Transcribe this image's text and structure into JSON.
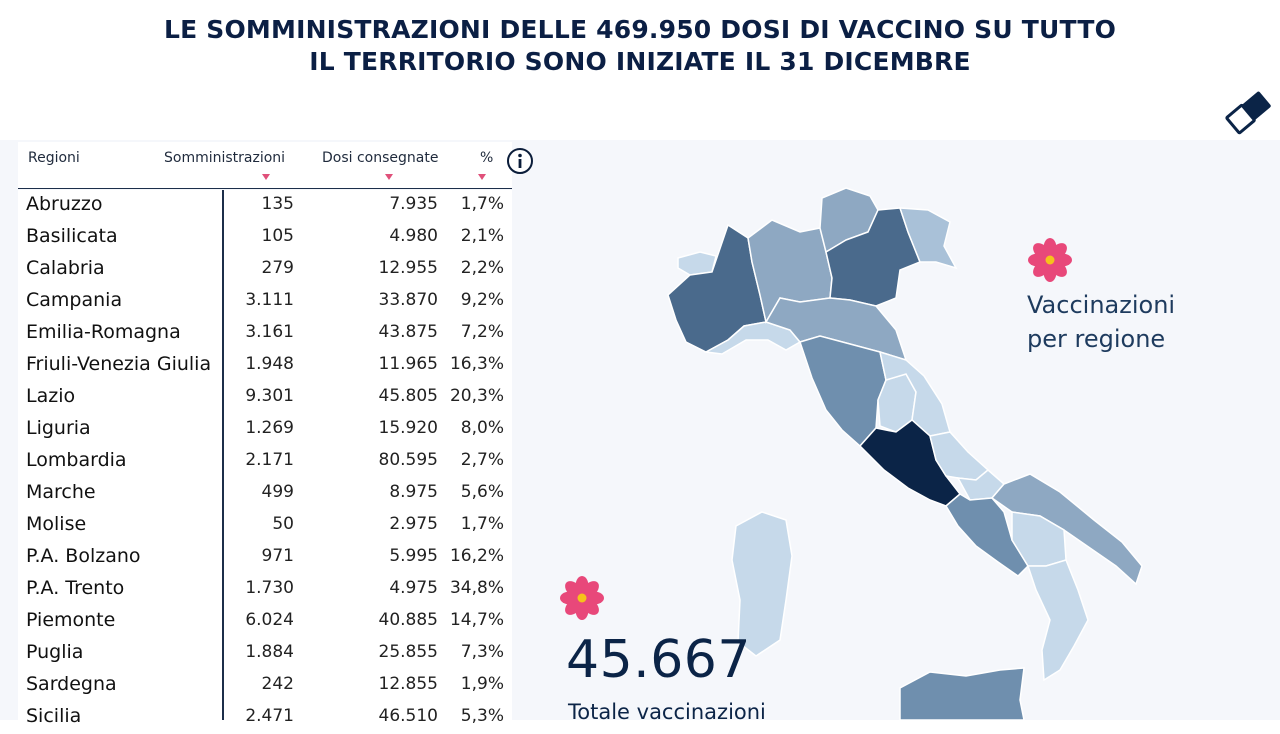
{
  "title": {
    "line1": "LE SOMMINISTRAZIONI DELLE 469.950 DOSI DI VACCINO SU TUTTO",
    "line2": "IL TERRITORIO SONO INIZIATE IL 31 DICEMBRE"
  },
  "table": {
    "headers": [
      "Regioni",
      "Somministrazioni",
      "Dosi consegnate",
      "%"
    ],
    "rows": [
      {
        "region": "Abruzzo",
        "admin": "135",
        "doses": "7.935",
        "pct": "1,7%"
      },
      {
        "region": "Basilicata",
        "admin": "105",
        "doses": "4.980",
        "pct": "2,1%"
      },
      {
        "region": "Calabria",
        "admin": "279",
        "doses": "12.955",
        "pct": "2,2%"
      },
      {
        "region": "Campania",
        "admin": "3.111",
        "doses": "33.870",
        "pct": "9,2%"
      },
      {
        "region": "Emilia-Romagna",
        "admin": "3.161",
        "doses": "43.875",
        "pct": "7,2%"
      },
      {
        "region": "Friuli-Venezia Giulia",
        "admin": "1.948",
        "doses": "11.965",
        "pct": "16,3%"
      },
      {
        "region": "Lazio",
        "admin": "9.301",
        "doses": "45.805",
        "pct": "20,3%"
      },
      {
        "region": "Liguria",
        "admin": "1.269",
        "doses": "15.920",
        "pct": "8,0%"
      },
      {
        "region": "Lombardia",
        "admin": "2.171",
        "doses": "80.595",
        "pct": "2,7%"
      },
      {
        "region": "Marche",
        "admin": "499",
        "doses": "8.975",
        "pct": "5,6%"
      },
      {
        "region": "Molise",
        "admin": "50",
        "doses": "2.975",
        "pct": "1,7%"
      },
      {
        "region": "P.A. Bolzano",
        "admin": "971",
        "doses": "5.995",
        "pct": "16,2%"
      },
      {
        "region": "P.A. Trento",
        "admin": "1.730",
        "doses": "4.975",
        "pct": "34,8%"
      },
      {
        "region": "Piemonte",
        "admin": "6.024",
        "doses": "40.885",
        "pct": "14,7%"
      },
      {
        "region": "Puglia",
        "admin": "1.884",
        "doses": "25.855",
        "pct": "7,3%"
      },
      {
        "region": "Sardegna",
        "admin": "242",
        "doses": "12.855",
        "pct": "1,9%"
      },
      {
        "region": "Sicilia",
        "admin": "2.471",
        "doses": "46.510",
        "pct": "5,3%"
      }
    ]
  },
  "legend": {
    "line1": "Vaccinazioni",
    "line2": "per regione"
  },
  "total": {
    "value": "45.667",
    "label": "Totale vaccinazioni"
  },
  "icons": {
    "eraser": "eraser-icon",
    "info": "info-icon",
    "flower": "flower-icon"
  },
  "colors": {
    "title": "#0b1f44",
    "accent": "#e8487a",
    "map_darkest": "#0b2447",
    "map_light": "#c6d9ea"
  }
}
